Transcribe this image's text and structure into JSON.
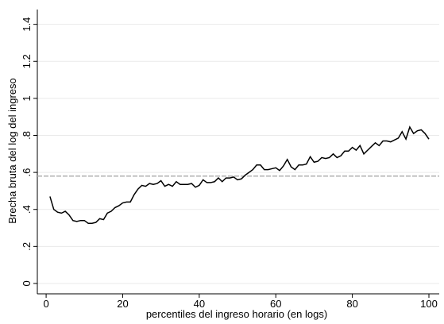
{
  "chart_data": {
    "type": "line",
    "x_label": "percentiles del ingreso horario (en logs)",
    "y_label": "Brecha bruta del log del ingreso",
    "x": [
      1,
      2,
      3,
      4,
      5,
      6,
      7,
      8,
      9,
      10,
      11,
      12,
      13,
      14,
      15,
      16,
      17,
      18,
      19,
      20,
      21,
      22,
      23,
      24,
      25,
      26,
      27,
      28,
      29,
      30,
      31,
      32,
      33,
      34,
      35,
      36,
      37,
      38,
      39,
      40,
      41,
      42,
      43,
      44,
      45,
      46,
      47,
      48,
      49,
      50,
      51,
      52,
      53,
      54,
      55,
      56,
      57,
      58,
      59,
      60,
      61,
      62,
      63,
      64,
      65,
      66,
      67,
      68,
      69,
      70,
      71,
      72,
      73,
      74,
      75,
      76,
      77,
      78,
      79,
      80,
      81,
      82,
      83,
      84,
      85,
      86,
      87,
      88,
      89,
      90,
      91,
      92,
      93,
      94,
      95,
      96,
      97,
      98,
      99,
      100
    ],
    "series": [
      {
        "color": "#000000",
        "values": [
          0.47,
          0.4,
          0.385,
          0.38,
          0.39,
          0.37,
          0.34,
          0.335,
          0.34,
          0.34,
          0.325,
          0.325,
          0.33,
          0.35,
          0.345,
          0.38,
          0.39,
          0.41,
          0.42,
          0.435,
          0.44,
          0.44,
          0.48,
          0.51,
          0.53,
          0.525,
          0.54,
          0.535,
          0.54,
          0.555,
          0.525,
          0.535,
          0.525,
          0.55,
          0.535,
          0.535,
          0.535,
          0.54,
          0.52,
          0.53,
          0.56,
          0.545,
          0.545,
          0.55,
          0.57,
          0.55,
          0.57,
          0.57,
          0.575,
          0.56,
          0.565,
          0.585,
          0.6,
          0.615,
          0.64,
          0.64,
          0.615,
          0.615,
          0.62,
          0.625,
          0.61,
          0.635,
          0.67,
          0.63,
          0.615,
          0.64,
          0.64,
          0.645,
          0.685,
          0.655,
          0.66,
          0.68,
          0.675,
          0.68,
          0.7,
          0.68,
          0.69,
          0.715,
          0.715,
          0.735,
          0.72,
          0.745,
          0.7,
          0.72,
          0.74,
          0.76,
          0.745,
          0.77,
          0.77,
          0.765,
          0.775,
          0.785,
          0.82,
          0.78,
          0.845,
          0.81,
          0.825,
          0.83,
          0.81,
          0.78
        ]
      }
    ],
    "reference_line": {
      "value": 0.58,
      "color": "#b0b0b0"
    },
    "xlim": [
      -2.3,
      102.7
    ],
    "xticks": [
      0,
      20,
      40,
      60,
      80,
      100
    ],
    "ylim": [
      -0.056,
      1.48
    ],
    "yticks": [
      0,
      {
        "value": 0.2,
        "label": ".2"
      },
      {
        "value": 0.4,
        "label": ".4"
      },
      {
        "value": 0.6,
        "label": ".6"
      },
      {
        "value": 0.8,
        "label": ".8"
      },
      1,
      {
        "value": 1.2,
        "label": "1.2"
      },
      {
        "value": 1.4,
        "label": "1.4"
      }
    ],
    "grid": true
  }
}
